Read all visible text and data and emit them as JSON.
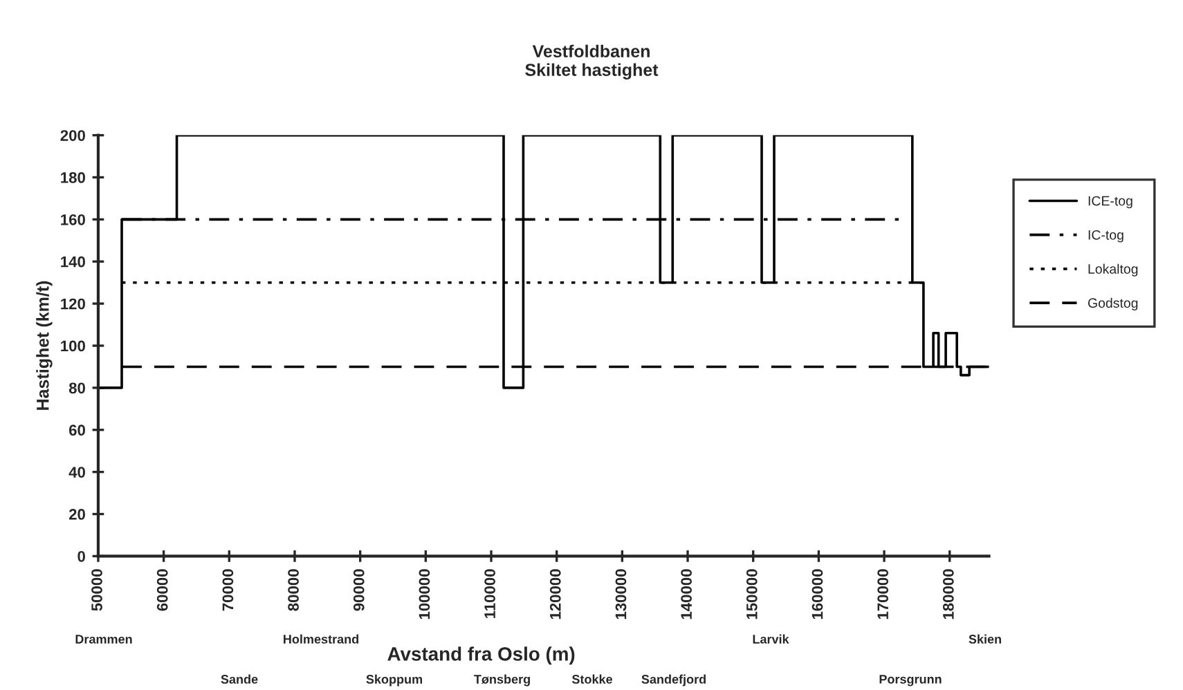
{
  "chart_data": {
    "type": "step",
    "title": "Vestfoldbanen",
    "subtitle": "Skiltet hastighet",
    "xlabel": "Avstand fra Oslo (m)",
    "ylabel": "Hastighet (km/t)",
    "xlim": [
      50000,
      186000
    ],
    "xticks": [
      50000,
      60000,
      70000,
      80000,
      90000,
      100000,
      110000,
      120000,
      130000,
      140000,
      150000,
      160000,
      170000,
      180000
    ],
    "ylim": [
      0,
      200
    ],
    "yticks": [
      0,
      20,
      40,
      60,
      80,
      100,
      120,
      140,
      160,
      180,
      200
    ],
    "grid": false,
    "legend": "right",
    "marker": "none",
    "series": [
      {
        "name": "ICE-tog",
        "color": "#000000",
        "line_style": "solid",
        "x": [
          50000,
          53600,
          62000,
          111900,
          114900,
          135800,
          137700,
          151300,
          153200,
          174300,
          176000,
          177500,
          178300,
          179400,
          181100,
          181700,
          183000,
          186000
        ],
        "values": [
          80,
          160,
          200,
          80,
          200,
          130,
          200,
          130,
          200,
          130,
          90,
          106,
          90,
          106,
          90,
          86,
          90,
          90
        ]
      },
      {
        "name": "IC-tog",
        "color": "#000000",
        "line_style": "dashdot",
        "x": [
          53600,
          172400
        ],
        "values": [
          160,
          160
        ]
      },
      {
        "name": "Lokaltog",
        "color": "#000000",
        "line_style": "dotted",
        "x": [
          53600,
          176000
        ],
        "values": [
          130,
          130
        ]
      },
      {
        "name": "Godstog",
        "color": "#000000",
        "line_style": "dashed",
        "x": [
          53600,
          186000
        ],
        "values": [
          90,
          90
        ]
      }
    ],
    "annotations": [
      "Drammen",
      "Sande",
      "Holmestrand",
      "Skoppum",
      "Tønsberg",
      "Stokke",
      "Sandefjord",
      "Larvik",
      "Porsgrunn",
      "Skien"
    ]
  }
}
